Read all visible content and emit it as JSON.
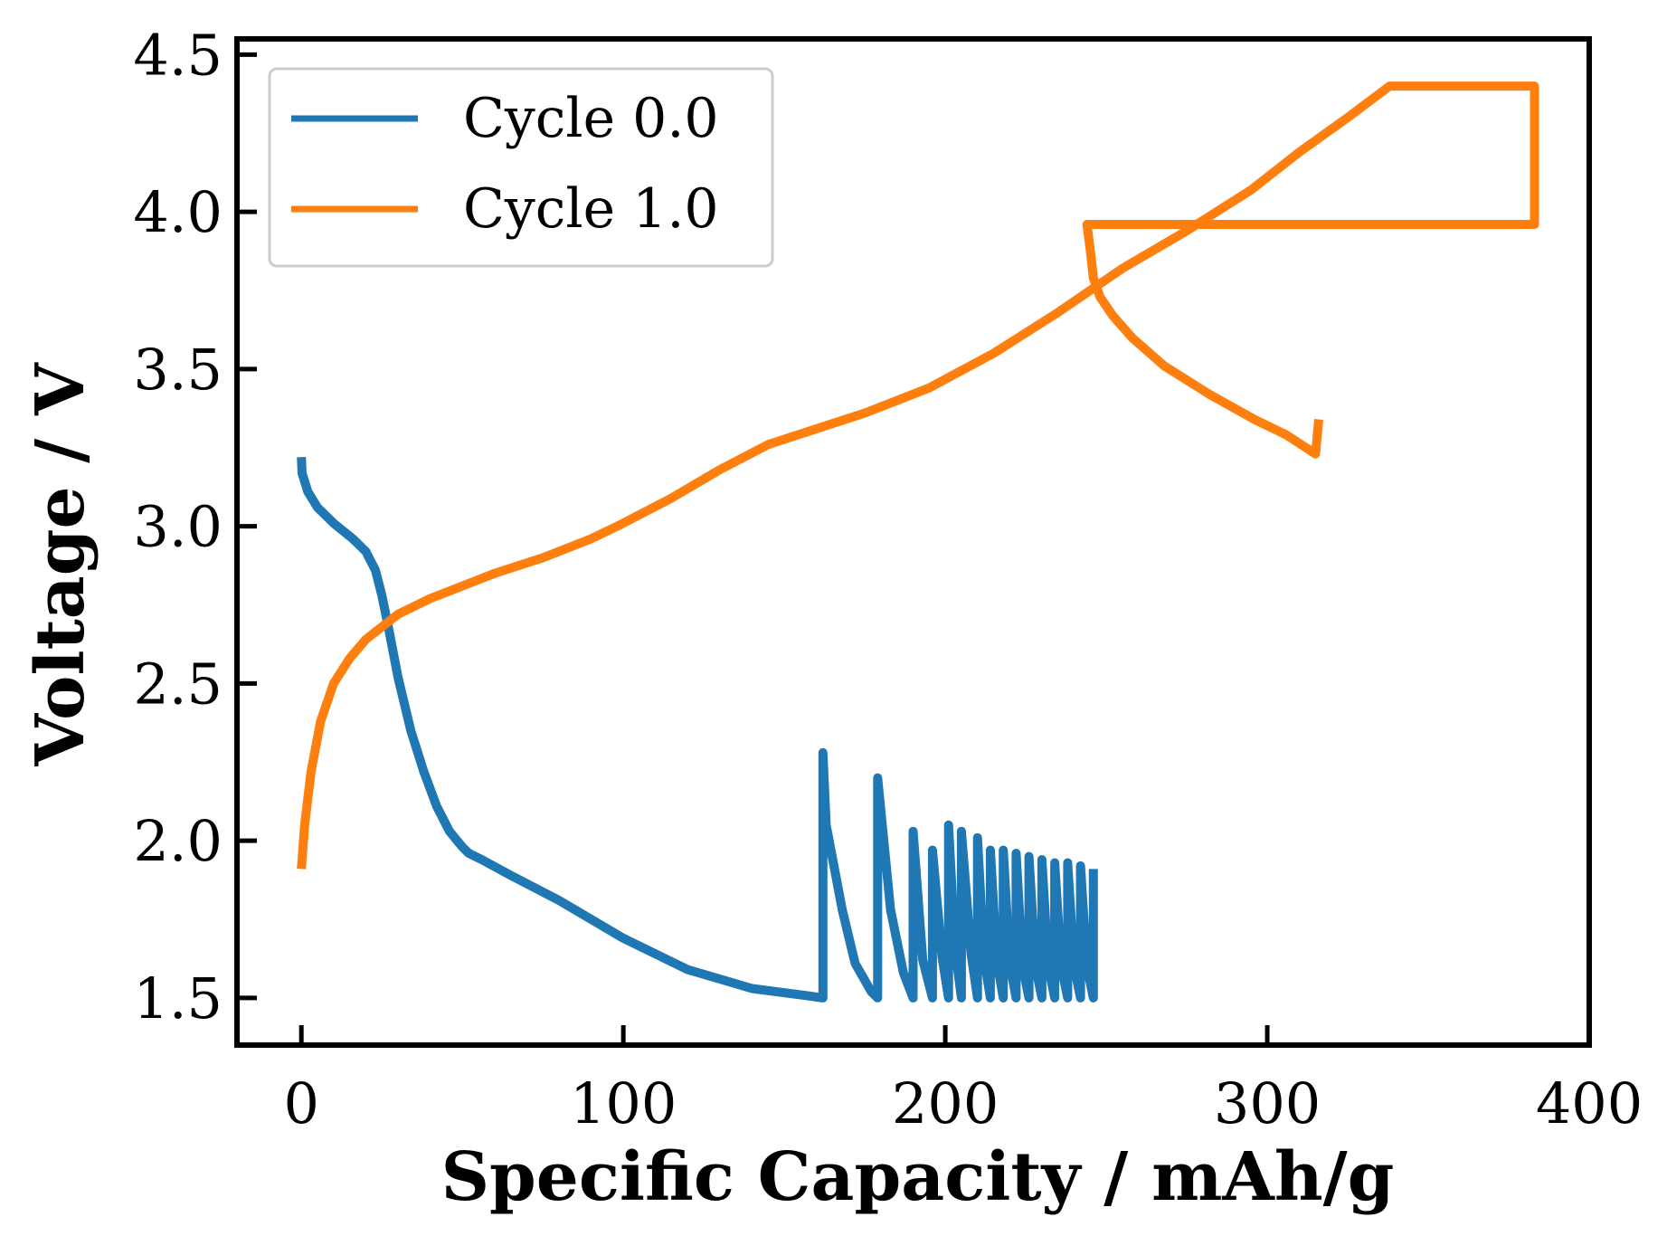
{
  "chart_data": {
    "type": "line",
    "title": "",
    "xlabel": "Specific Capacity / mAh/g",
    "ylabel": "Voltage / V",
    "xlim": [
      -20,
      400
    ],
    "ylim": [
      1.35,
      4.55
    ],
    "xticks": [
      0,
      100,
      200,
      300,
      400
    ],
    "xtick_labels": [
      "0",
      "100",
      "200",
      "300",
      "400"
    ],
    "yticks": [
      1.5,
      2.0,
      2.5,
      3.0,
      3.5,
      4.0,
      4.5
    ],
    "ytick_labels": [
      "1.5",
      "2.0",
      "2.5",
      "3.0",
      "3.5",
      "4.0",
      "4.5"
    ],
    "grid": false,
    "legend_position": "top-left",
    "series": [
      {
        "name": "Cycle 0.0",
        "color": "#1f77b4",
        "x": [
          0,
          0.2,
          2,
          5,
          10,
          16,
          20,
          23,
          25,
          27,
          30,
          34,
          38,
          42,
          46,
          50,
          52,
          56,
          65,
          80,
          100,
          120,
          140,
          155,
          162,
          162,
          163,
          168,
          172,
          177,
          179,
          179,
          183,
          187,
          190,
          190,
          193,
          196,
          196,
          199,
          201,
          201,
          203,
          205,
          205,
          208,
          210,
          210,
          212,
          214,
          214,
          216,
          218,
          218,
          220,
          222,
          222,
          224,
          226,
          226,
          228,
          230,
          230,
          232,
          234,
          234,
          236,
          238,
          238,
          240,
          242,
          242,
          244,
          246,
          246
        ],
        "y": [
          3.22,
          3.17,
          3.11,
          3.06,
          3.01,
          2.96,
          2.92,
          2.86,
          2.78,
          2.68,
          2.52,
          2.35,
          2.22,
          2.11,
          2.03,
          1.98,
          1.96,
          1.94,
          1.89,
          1.81,
          1.69,
          1.59,
          1.53,
          1.51,
          1.5,
          2.28,
          2.05,
          1.78,
          1.61,
          1.52,
          1.5,
          2.2,
          1.78,
          1.58,
          1.5,
          2.03,
          1.62,
          1.5,
          1.97,
          1.63,
          1.5,
          2.05,
          1.66,
          1.5,
          2.03,
          1.64,
          1.5,
          2.01,
          1.63,
          1.5,
          1.97,
          1.62,
          1.5,
          1.97,
          1.61,
          1.5,
          1.96,
          1.6,
          1.5,
          1.95,
          1.6,
          1.5,
          1.94,
          1.6,
          1.5,
          1.93,
          1.6,
          1.5,
          1.93,
          1.6,
          1.5,
          1.92,
          1.6,
          1.5,
          1.91
        ]
      },
      {
        "name": "Cycle 1.0",
        "color": "#ff7f0e",
        "x": [
          0,
          1,
          3,
          6,
          10,
          15,
          20,
          25,
          30,
          40,
          50,
          60,
          75,
          90,
          100,
          115,
          130,
          145,
          160,
          175,
          195,
          215,
          235,
          255,
          275,
          295,
          310,
          325,
          338,
          383,
          383,
          350,
          300,
          244,
          245,
          246,
          248,
          252,
          258,
          268,
          282,
          296,
          306,
          315,
          316
        ],
        "y": [
          1.91,
          2.05,
          2.22,
          2.38,
          2.5,
          2.58,
          2.64,
          2.68,
          2.72,
          2.77,
          2.81,
          2.85,
          2.9,
          2.96,
          3.01,
          3.09,
          3.18,
          3.26,
          3.31,
          3.36,
          3.44,
          3.55,
          3.68,
          3.82,
          3.94,
          4.07,
          4.19,
          4.3,
          4.4,
          4.4,
          3.96,
          3.96,
          3.96,
          3.96,
          3.88,
          3.79,
          3.73,
          3.67,
          3.6,
          3.51,
          3.42,
          3.34,
          3.29,
          3.23,
          3.34
        ]
      }
    ]
  }
}
